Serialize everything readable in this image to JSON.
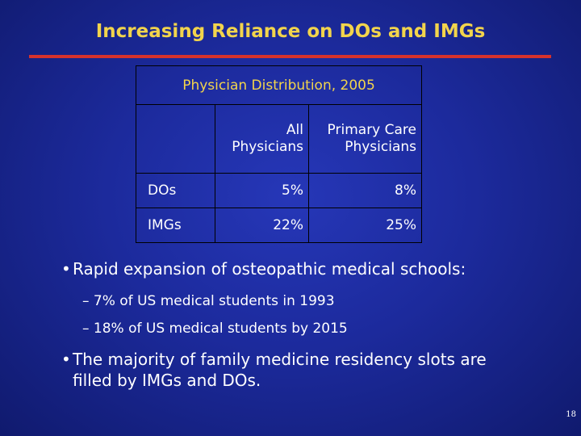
{
  "slide": {
    "title": "Increasing Reliance on DOs and IMGs",
    "page_number": "18"
  },
  "table": {
    "caption": "Physician Distribution, 2005",
    "columns": [
      "",
      "All Physicians",
      "Primary Care Physicians"
    ],
    "rows": [
      {
        "label": "DOs",
        "all": "5%",
        "primary": "8%"
      },
      {
        "label": "IMGs",
        "all": "22%",
        "primary": "25%"
      }
    ]
  },
  "bullets": [
    {
      "text": "Rapid expansion of osteopathic medical schools:",
      "sub": [
        "– 7% of US medical students in 1993",
        "– 18% of US medical students by 2015"
      ]
    },
    {
      "text": "The majority of family medicine residency slots are filled by IMGs and DOs."
    }
  ],
  "colors": {
    "background": "#1c2a9c",
    "title": "#f2d44c",
    "rule": "#d6322c",
    "text": "#ffffff"
  }
}
